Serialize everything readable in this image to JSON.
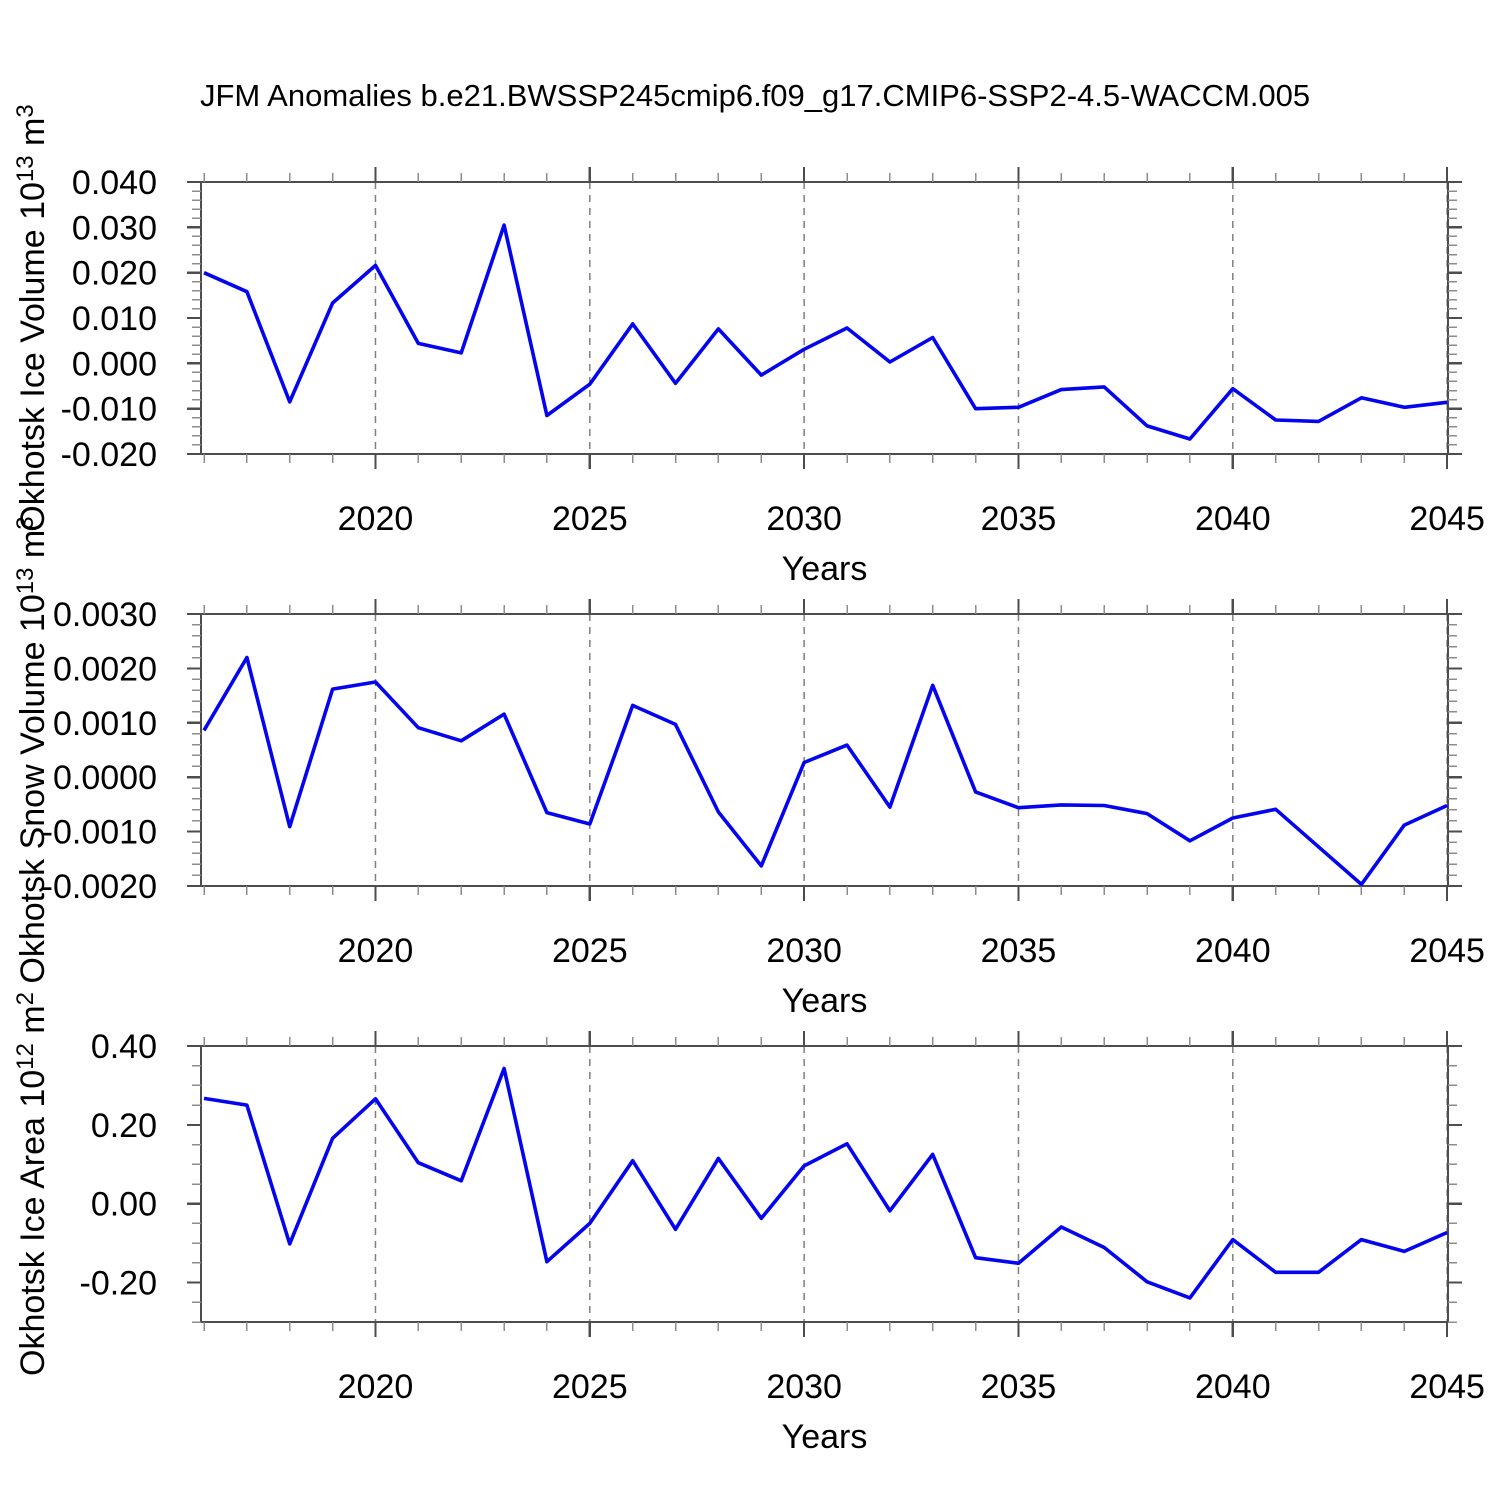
{
  "title": "JFM Anomalies b.e21.BWSSP245cmip6.f09_g17.CMIP6-SSP2-4.5-WACCM.005",
  "chart_data": {
    "type": "line",
    "x_label": "Years",
    "line_color": "#0404ee",
    "grid": "dashed-vertical-at-major-x",
    "legend": "none",
    "x": [
      2016,
      2017,
      2018,
      2019,
      2020,
      2021,
      2022,
      2023,
      2024,
      2025,
      2026,
      2027,
      2028,
      2029,
      2030,
      2031,
      2032,
      2033,
      2034,
      2035,
      2036,
      2037,
      2038,
      2039,
      2040,
      2041,
      2042,
      2043,
      2044,
      2045
    ],
    "x_ticks_major": [
      2020,
      2025,
      2030,
      2035,
      2040,
      2045
    ],
    "x_tick_labels": [
      "2020",
      "2025",
      "2030",
      "2035",
      "2040",
      "2045"
    ],
    "xlim": [
      2015.93,
      2045.02
    ],
    "panels": [
      {
        "name": "okhotsk-ice-volume",
        "ylabel_text": "Okhotsk Ice Volume 10^13 m^3",
        "ylabel_parts": [
          [
            "Okhotsk Ice Volume 10",
            0
          ],
          [
            "13",
            1
          ],
          [
            " m",
            0
          ],
          [
            "3",
            1
          ]
        ],
        "ylim": [
          -0.02,
          0.04
        ],
        "ytick_values": [
          0.04,
          0.03,
          0.02,
          0.01,
          0.0,
          -0.01,
          -0.02
        ],
        "ytick_labels": [
          "0.040",
          "0.030",
          "0.020",
          "0.010",
          "0.000",
          "-0.010",
          "-0.020"
        ],
        "yminor_step": 0.002,
        "values": [
          0.02,
          0.0158,
          -0.0085,
          0.0133,
          0.0216,
          0.0044,
          0.0023,
          0.0305,
          -0.0115,
          -0.0046,
          0.0087,
          -0.0044,
          0.0076,
          -0.0026,
          0.0031,
          0.0078,
          0.0003,
          0.0057,
          -0.01,
          -0.0097,
          -0.0058,
          -0.0052,
          -0.0138,
          -0.0167,
          -0.0056,
          -0.0125,
          -0.0128,
          -0.0076,
          -0.0097,
          -0.0086
        ]
      },
      {
        "name": "okhotsk-snow-volume",
        "ylabel_text": "Okhotsk Snow Volume 10^13 m^3",
        "ylabel_parts": [
          [
            "Okhotsk Snow Volume 10",
            0
          ],
          [
            "13",
            1
          ],
          [
            " m",
            0
          ],
          [
            "3",
            1
          ]
        ],
        "ylim": [
          -0.002,
          0.003
        ],
        "ytick_values": [
          0.003,
          0.002,
          0.001,
          0.0,
          -0.001,
          -0.002
        ],
        "ytick_labels": [
          "0.0030",
          "0.0020",
          "0.0010",
          "0.0000",
          "-0.0010",
          "-0.0020"
        ],
        "yminor_step": 0.0002,
        "values": [
          0.00086,
          0.0022,
          -0.00091,
          0.00162,
          0.00175,
          0.00091,
          0.00067,
          0.00116,
          -0.00065,
          -0.00086,
          0.00132,
          0.00097,
          -0.00064,
          -0.00163,
          0.00027,
          0.00059,
          -0.00055,
          0.00169,
          -0.00027,
          -0.00056,
          -0.00051,
          -0.00052,
          -0.00067,
          -0.00117,
          -0.00075,
          -0.00059,
          -0.00128,
          -0.00197,
          -0.00088,
          -0.00052
        ]
      },
      {
        "name": "okhotsk-ice-area",
        "ylabel_text": "Okhotsk Ice Area 10^12 m^2",
        "ylabel_parts": [
          [
            "Okhotsk Ice Area 10",
            0
          ],
          [
            "12",
            1
          ],
          [
            " m",
            0
          ],
          [
            "2",
            1
          ]
        ],
        "ylim": [
          -0.3,
          0.4
        ],
        "ytick_values": [
          0.4,
          0.2,
          0.0,
          -0.2
        ],
        "ytick_labels": [
          "0.40",
          "0.20",
          "0.00",
          "-0.20"
        ],
        "yminor_step": 0.05,
        "values": [
          0.267,
          0.25,
          -0.102,
          0.166,
          0.266,
          0.104,
          0.058,
          0.343,
          -0.147,
          -0.05,
          0.109,
          -0.065,
          0.115,
          -0.037,
          0.096,
          0.152,
          -0.018,
          0.125,
          -0.137,
          -0.151,
          -0.059,
          -0.111,
          -0.198,
          -0.239,
          -0.091,
          -0.174,
          -0.174,
          -0.091,
          -0.121,
          -0.073
        ]
      }
    ]
  },
  "colors": {
    "line": "#0404ee",
    "frame": "#4d4d4d",
    "major_tick": "#4d4d4d",
    "minor_tick": "#8c8c8c",
    "gridline": "#7f7f7f",
    "text": "#000000",
    "background": "#ffffff"
  }
}
